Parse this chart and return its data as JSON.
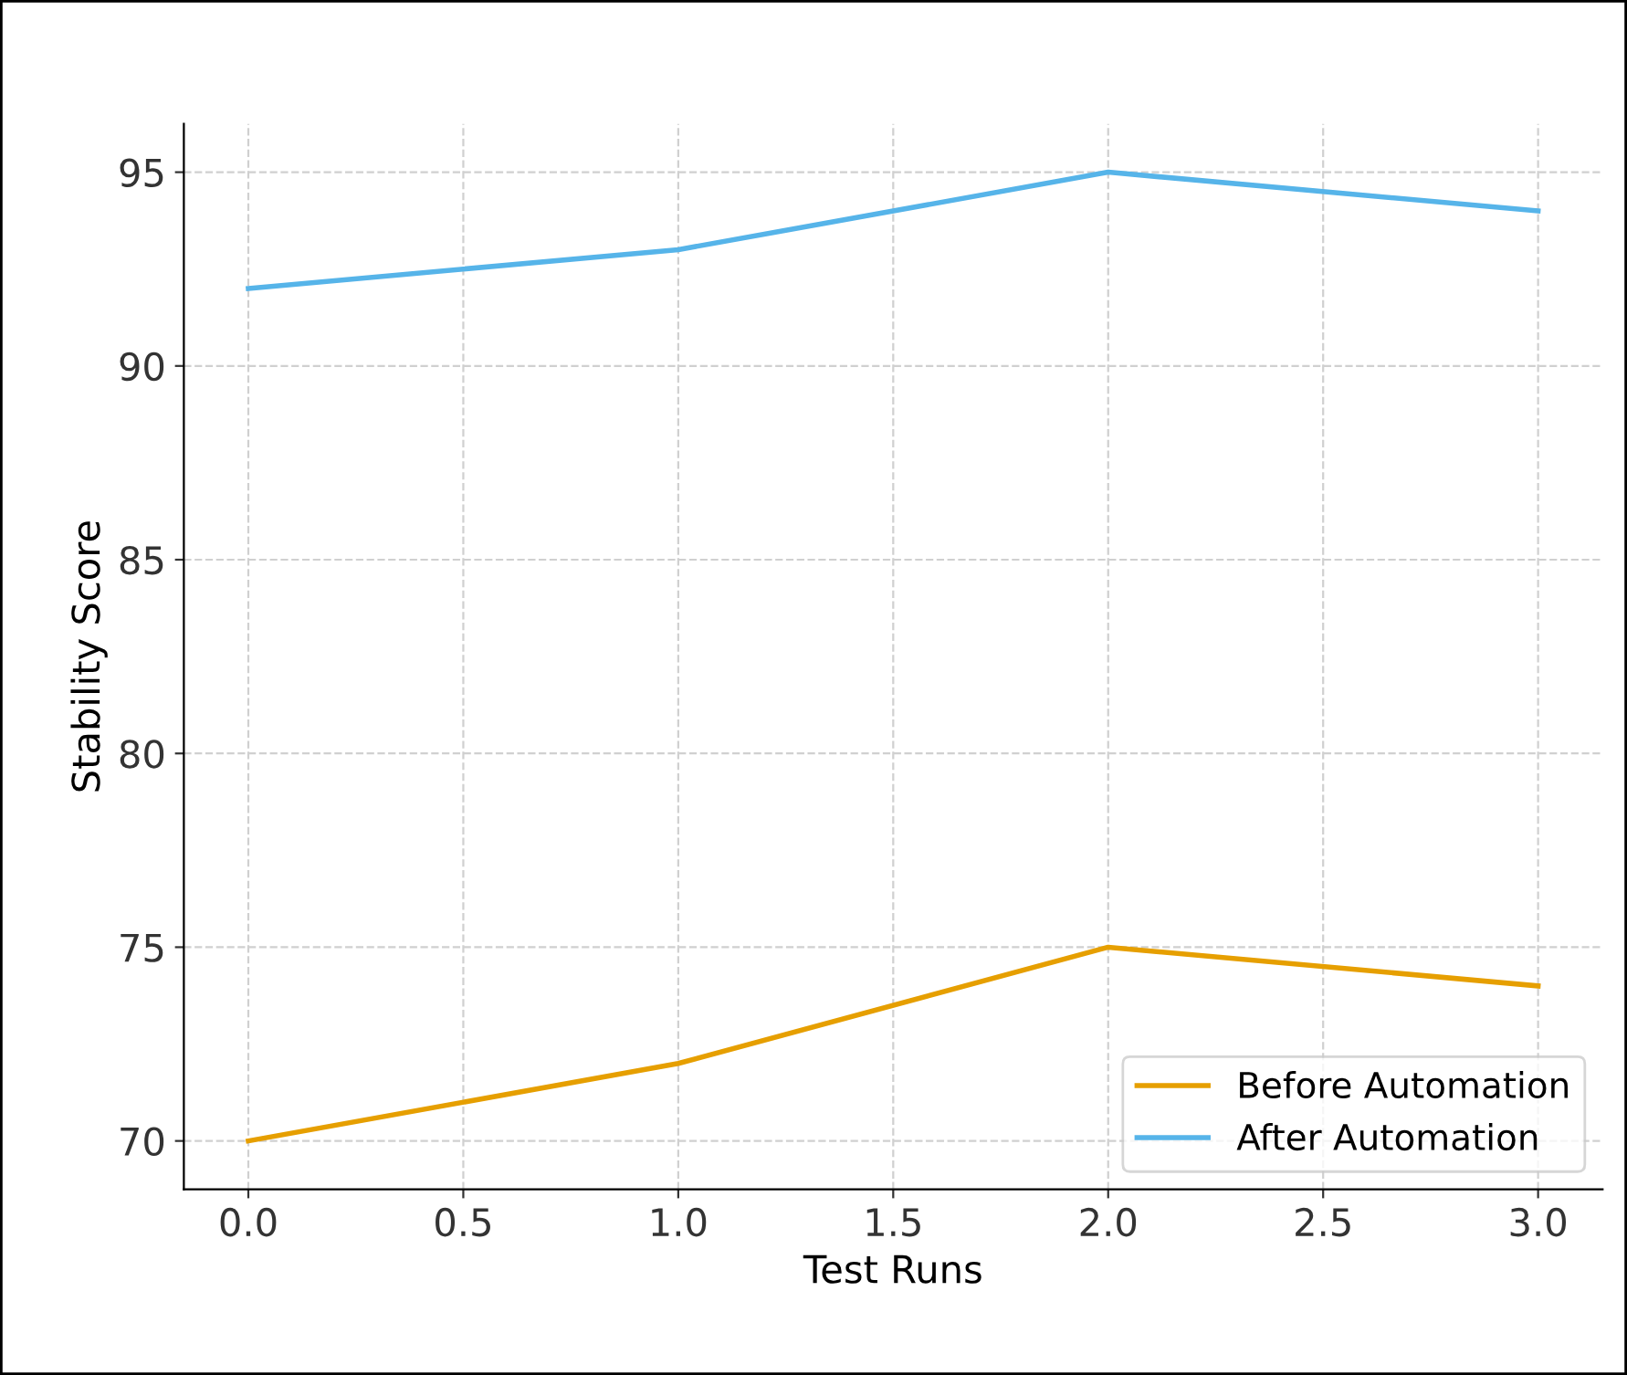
{
  "chart_data": {
    "type": "line",
    "xlabel": "Test Runs",
    "ylabel": "Stability Score",
    "x": [
      0,
      1,
      2,
      3
    ],
    "series": [
      {
        "name": "Before Automation",
        "color": "#e69f00",
        "values": [
          70,
          72,
          75,
          74
        ]
      },
      {
        "name": "After Automation",
        "color": "#56b4e9",
        "values": [
          92,
          93,
          95,
          94
        ]
      }
    ],
    "xlim": [
      -0.15,
      3.15
    ],
    "xticks": [
      {
        "value": 0,
        "label": "0.0"
      },
      {
        "value": 0.5,
        "label": "0.5"
      },
      {
        "value": 1,
        "label": "1.0"
      },
      {
        "value": 1.5,
        "label": "1.5"
      },
      {
        "value": 2,
        "label": "2.0"
      },
      {
        "value": 2.5,
        "label": "2.5"
      },
      {
        "value": 3,
        "label": "3.0"
      }
    ],
    "ylim": [
      68.75,
      96.25
    ],
    "yticks": [
      70,
      75,
      80,
      85,
      90,
      95
    ],
    "grid": true,
    "legend": "bottom right",
    "marker": "none",
    "line_style": "solid"
  }
}
